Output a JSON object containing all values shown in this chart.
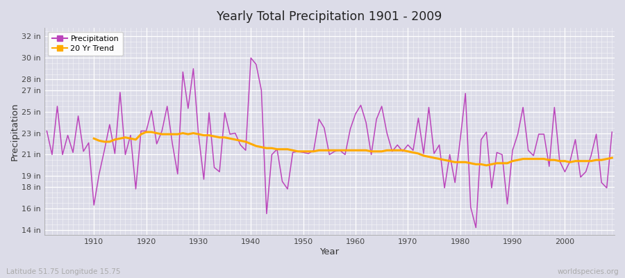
{
  "title": "Yearly Total Precipitation 1901 - 2009",
  "xlabel": "Year",
  "ylabel": "Precipitation",
  "subtitle": "Latitude 51.75 Longitude 15.75",
  "watermark": "worldspecies.org",
  "years": [
    1901,
    1902,
    1903,
    1904,
    1905,
    1906,
    1907,
    1908,
    1909,
    1910,
    1911,
    1912,
    1913,
    1914,
    1915,
    1916,
    1917,
    1918,
    1919,
    1920,
    1921,
    1922,
    1923,
    1924,
    1925,
    1926,
    1927,
    1928,
    1929,
    1930,
    1931,
    1932,
    1933,
    1934,
    1935,
    1936,
    1937,
    1938,
    1939,
    1940,
    1941,
    1942,
    1943,
    1944,
    1945,
    1946,
    1947,
    1948,
    1949,
    1950,
    1951,
    1952,
    1953,
    1954,
    1955,
    1956,
    1957,
    1958,
    1959,
    1960,
    1961,
    1962,
    1963,
    1964,
    1965,
    1966,
    1967,
    1968,
    1969,
    1970,
    1971,
    1972,
    1973,
    1974,
    1975,
    1976,
    1977,
    1978,
    1979,
    1980,
    1981,
    1982,
    1983,
    1984,
    1985,
    1986,
    1987,
    1988,
    1989,
    1990,
    1991,
    1992,
    1993,
    1994,
    1995,
    1996,
    1997,
    1998,
    1999,
    2000,
    2001,
    2002,
    2003,
    2004,
    2005,
    2006,
    2007,
    2008,
    2009
  ],
  "precip": [
    23.2,
    21.0,
    25.5,
    21.0,
    22.8,
    21.2,
    24.6,
    21.3,
    22.1,
    16.3,
    19.2,
    21.4,
    23.8,
    21.1,
    26.8,
    21.0,
    22.8,
    17.8,
    23.2,
    23.2,
    25.1,
    22.0,
    23.2,
    25.5,
    22.0,
    19.2,
    28.7,
    25.3,
    29.0,
    22.8,
    18.7,
    24.9,
    19.8,
    19.4,
    24.9,
    22.9,
    23.0,
    21.9,
    21.4,
    30.0,
    29.4,
    27.0,
    15.5,
    21.0,
    21.5,
    18.5,
    17.8,
    21.2,
    21.3,
    21.2,
    21.1,
    21.4,
    24.3,
    23.5,
    21.0,
    21.3,
    21.4,
    21.0,
    23.4,
    24.8,
    25.6,
    24.0,
    21.0,
    24.3,
    25.5,
    23.0,
    21.3,
    21.9,
    21.3,
    21.9,
    21.4,
    24.4,
    21.1,
    25.4,
    21.1,
    21.9,
    17.9,
    21.0,
    18.4,
    22.4,
    26.7,
    16.1,
    14.2,
    22.4,
    23.1,
    17.9,
    21.2,
    21.0,
    16.4,
    21.4,
    22.9,
    25.4,
    21.4,
    20.9,
    22.9,
    22.9,
    19.9,
    25.4,
    20.4,
    19.4,
    20.4,
    22.4,
    18.9,
    19.4,
    20.9,
    22.9,
    18.4,
    17.9,
    23.1
  ],
  "trend": [
    null,
    null,
    null,
    null,
    null,
    null,
    null,
    null,
    null,
    22.5,
    22.3,
    22.2,
    22.2,
    22.4,
    22.5,
    22.6,
    22.5,
    22.4,
    22.9,
    23.1,
    23.1,
    23.0,
    22.9,
    22.9,
    22.9,
    22.9,
    23.0,
    22.9,
    23.0,
    22.9,
    22.8,
    22.8,
    22.7,
    22.6,
    22.6,
    22.5,
    22.4,
    22.3,
    22.2,
    22.0,
    21.8,
    21.7,
    21.6,
    21.6,
    21.5,
    21.5,
    21.5,
    21.4,
    21.3,
    21.3,
    21.3,
    21.3,
    21.4,
    21.4,
    21.4,
    21.4,
    21.4,
    21.4,
    21.4,
    21.4,
    21.4,
    21.4,
    21.3,
    21.3,
    21.3,
    21.4,
    21.4,
    21.4,
    21.4,
    21.3,
    21.2,
    21.1,
    20.9,
    20.8,
    20.7,
    20.6,
    20.5,
    20.4,
    20.3,
    20.3,
    20.3,
    20.2,
    20.1,
    20.1,
    20.0,
    20.1,
    20.2,
    20.2,
    20.2,
    20.4,
    20.5,
    20.6,
    20.6,
    20.6,
    20.6,
    20.6,
    20.5,
    20.5,
    20.4,
    20.4,
    20.3,
    20.4,
    20.4,
    20.4,
    20.4,
    20.5,
    20.5,
    20.6,
    20.7
  ],
  "precip_color": "#bb44bb",
  "trend_color": "#ffaa00",
  "bg_color": "#dcdce8",
  "yticks": [
    14,
    16,
    18,
    19,
    21,
    23,
    25,
    27,
    28,
    30,
    32
  ],
  "ylim": [
    13.5,
    32.8
  ],
  "xlim": [
    1900.5,
    2009.5
  ],
  "xticks": [
    1910,
    1920,
    1930,
    1940,
    1950,
    1960,
    1970,
    1980,
    1990,
    2000
  ]
}
